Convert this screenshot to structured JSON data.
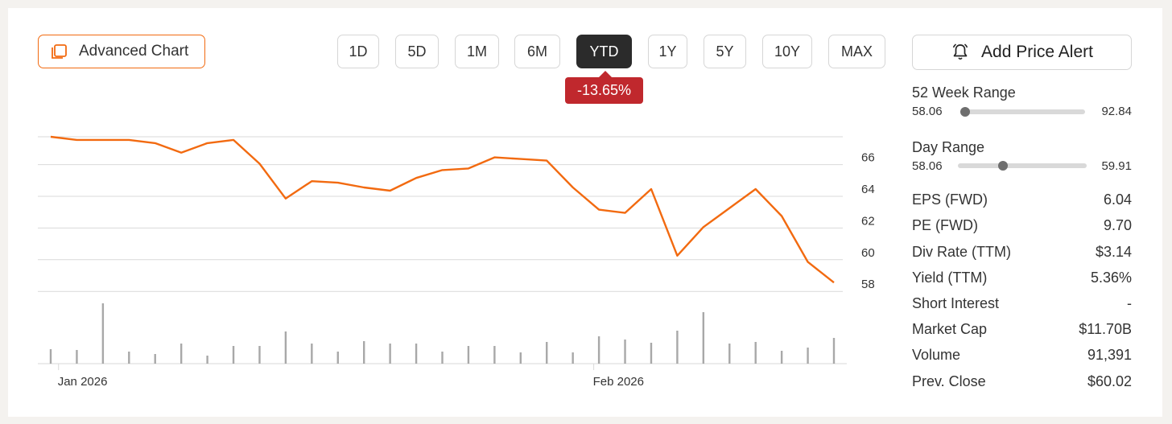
{
  "header": {
    "advanced_chart_label": "Advanced Chart",
    "ranges": [
      "1D",
      "5D",
      "1M",
      "6M",
      "YTD",
      "1Y",
      "5Y",
      "10Y",
      "MAX"
    ],
    "active_range": "YTD",
    "change_badge": "-13.65%",
    "add_alert_label": "Add Price Alert"
  },
  "sidebar": {
    "week52": {
      "title": "52 Week Range",
      "low": "58.06",
      "high": "92.84",
      "position": 0.0
    },
    "day": {
      "title": "Day Range",
      "low": "58.06",
      "high": "59.91",
      "position": 0.35
    },
    "stats": [
      {
        "label": "EPS (FWD)",
        "value": "6.04"
      },
      {
        "label": "PE (FWD)",
        "value": "9.70"
      },
      {
        "label": "Div Rate (TTM)",
        "value": "$3.14"
      },
      {
        "label": "Yield (TTM)",
        "value": "5.36%"
      },
      {
        "label": "Short Interest",
        "value": "-"
      },
      {
        "label": "Market Cap",
        "value": "$11.70B"
      },
      {
        "label": "Volume",
        "value": "91,391"
      },
      {
        "label": "Prev. Close",
        "value": "$60.02"
      }
    ]
  },
  "colors": {
    "accent": "#f26a10",
    "negative": "#c0282d",
    "volume": "#a8a8a8",
    "grid": "#d9d9d9"
  },
  "chart_data": {
    "type": "line",
    "y_ticks": [
      58,
      60,
      62,
      64,
      66
    ],
    "ylim": [
      57.3,
      67.3
    ],
    "x_labels": [
      {
        "label": "Jan 2026",
        "index": 0.3
      },
      {
        "label": "Feb 2026",
        "index": 20.8
      }
    ],
    "price": [
      67.3,
      67.1,
      67.1,
      67.1,
      66.9,
      66.3,
      66.9,
      67.1,
      65.6,
      63.4,
      64.5,
      64.4,
      64.1,
      63.9,
      64.7,
      65.2,
      65.3,
      66.0,
      65.9,
      65.8,
      64.1,
      62.7,
      62.5,
      64.0,
      59.8,
      61.6,
      62.8,
      64.0,
      62.3,
      59.4,
      58.1
    ],
    "volume": [
      18,
      17,
      75,
      15,
      12,
      25,
      10,
      22,
      22,
      40,
      25,
      15,
      28,
      25,
      25,
      15,
      22,
      22,
      14,
      27,
      14,
      34,
      30,
      26,
      41,
      64,
      25,
      27,
      16,
      20,
      32
    ]
  }
}
